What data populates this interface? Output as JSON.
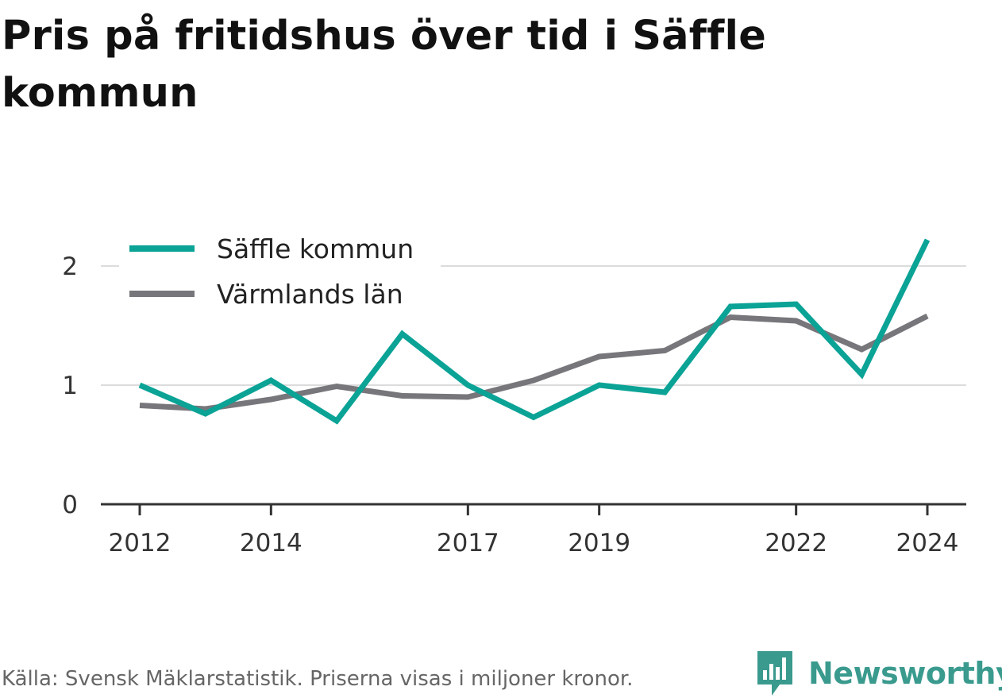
{
  "title": "Pris på fritidshus över tid i Säffle kommun",
  "source": "Källa: Svensk Mäklarstatistik. Priserna visas i miljoner kronor.",
  "brand": {
    "name": "Newsworthy",
    "icon": "newsworthy-logo-icon",
    "color": "#3a9a8e"
  },
  "chart_data": {
    "type": "line",
    "x": [
      2012,
      2013,
      2014,
      2015,
      2016,
      2017,
      2018,
      2019,
      2020,
      2021,
      2022,
      2023,
      2024
    ],
    "series": [
      {
        "name": "Säffle kommun",
        "color": "#0aa396",
        "values": [
          1.0,
          0.76,
          1.04,
          0.7,
          1.43,
          1.0,
          0.73,
          1.0,
          0.94,
          1.66,
          1.68,
          1.09,
          2.22
        ]
      },
      {
        "name": "Värmlands län",
        "color": "#77767b",
        "values": [
          0.83,
          0.8,
          0.88,
          0.99,
          0.91,
          0.9,
          1.04,
          1.24,
          1.29,
          1.57,
          1.54,
          1.3,
          1.58
        ]
      }
    ],
    "xticks": [
      "2012",
      "2014",
      "2017",
      "2019",
      "2022",
      "2024"
    ],
    "yticks": [
      "0",
      "1",
      "2"
    ],
    "ylim": [
      0,
      2.3
    ],
    "xlim": [
      2012,
      2024
    ],
    "grid": true,
    "legend": "top-left"
  }
}
